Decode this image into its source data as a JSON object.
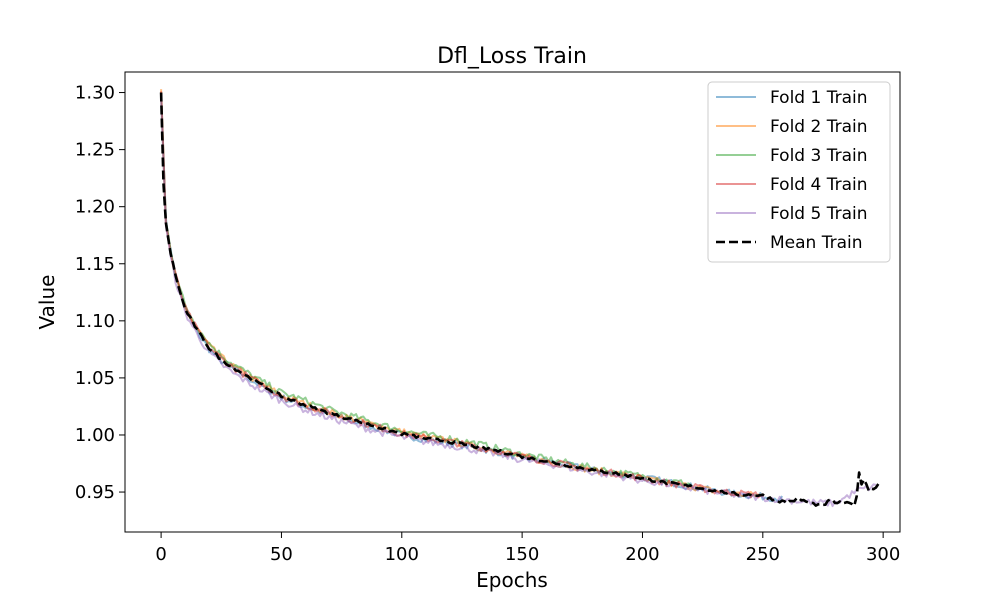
{
  "chart_data": {
    "type": "line",
    "title": "Dfl_Loss Train",
    "xlabel": "Epochs",
    "ylabel": "Value",
    "xlim": [
      -15,
      307
    ],
    "ylim": [
      0.915,
      1.318
    ],
    "xticks": [
      0,
      50,
      100,
      150,
      200,
      250,
      300
    ],
    "yticks": [
      0.95,
      1.0,
      1.05,
      1.1,
      1.15,
      1.2,
      1.25,
      1.3
    ],
    "grid": false,
    "legend_position": "top-right",
    "series": [
      {
        "name": "Fold 1 Train",
        "color": "#1f77b4",
        "style": "solid",
        "alpha": 0.5,
        "x": [
          0,
          2,
          4,
          6,
          8,
          10,
          15,
          20,
          25,
          30,
          40,
          50,
          60,
          70,
          80,
          90,
          100,
          110,
          120,
          130,
          140,
          150,
          160,
          170,
          180,
          190,
          200,
          210,
          220,
          230,
          240,
          250,
          258
        ],
        "y": [
          1.3,
          1.19,
          1.16,
          1.14,
          1.125,
          1.11,
          1.09,
          1.075,
          1.065,
          1.058,
          1.045,
          1.033,
          1.025,
          1.018,
          1.012,
          1.006,
          1.0,
          0.996,
          0.993,
          0.989,
          0.985,
          0.98,
          0.977,
          0.973,
          0.969,
          0.966,
          0.963,
          0.959,
          0.955,
          0.951,
          0.948,
          0.946,
          0.944
        ]
      },
      {
        "name": "Fold 2 Train",
        "color": "#ff7f0e",
        "style": "solid",
        "alpha": 0.5,
        "x": [
          0,
          2,
          4,
          6,
          8,
          10,
          15,
          20,
          25,
          30,
          40,
          50,
          60,
          70,
          80,
          90,
          100,
          110,
          120,
          130,
          140,
          150,
          160,
          170,
          180,
          190,
          200,
          210,
          220,
          230,
          240,
          250
        ],
        "y": [
          1.303,
          1.185,
          1.158,
          1.138,
          1.124,
          1.11,
          1.093,
          1.078,
          1.068,
          1.06,
          1.047,
          1.035,
          1.027,
          1.02,
          1.014,
          1.008,
          1.003,
          0.998,
          0.995,
          0.99,
          0.986,
          0.981,
          0.977,
          0.973,
          0.969,
          0.966,
          0.962,
          0.958,
          0.955,
          0.951,
          0.948,
          0.947
        ]
      },
      {
        "name": "Fold 3 Train",
        "color": "#2ca02c",
        "style": "solid",
        "alpha": 0.5,
        "x": [
          0,
          2,
          4,
          6,
          8,
          10,
          15,
          20,
          25,
          30,
          40,
          50,
          60,
          70,
          80,
          90,
          100,
          110,
          120,
          130,
          140,
          150,
          160,
          170,
          180,
          190,
          200,
          210,
          220
        ],
        "y": [
          1.298,
          1.187,
          1.163,
          1.142,
          1.127,
          1.113,
          1.095,
          1.08,
          1.07,
          1.062,
          1.049,
          1.037,
          1.03,
          1.022,
          1.016,
          1.01,
          1.004,
          1.0,
          0.997,
          0.993,
          0.988,
          0.983,
          0.979,
          0.975,
          0.971,
          0.967,
          0.964,
          0.96,
          0.957
        ]
      },
      {
        "name": "Fold 4 Train",
        "color": "#d62728",
        "style": "solid",
        "alpha": 0.5,
        "x": [
          0,
          2,
          4,
          6,
          8,
          10,
          15,
          20,
          25,
          30,
          40,
          50,
          60,
          70,
          80,
          90,
          100,
          110,
          120,
          130,
          140,
          150,
          160,
          170,
          180,
          190,
          200,
          210,
          220,
          230,
          240,
          250
        ],
        "y": [
          1.301,
          1.186,
          1.159,
          1.14,
          1.125,
          1.111,
          1.092,
          1.077,
          1.067,
          1.059,
          1.046,
          1.034,
          1.026,
          1.019,
          1.013,
          1.007,
          1.001,
          0.997,
          0.994,
          0.99,
          0.986,
          0.981,
          0.977,
          0.973,
          0.969,
          0.966,
          0.962,
          0.958,
          0.955,
          0.951,
          0.949,
          0.947
        ]
      },
      {
        "name": "Fold 5 Train",
        "color": "#9467bd",
        "style": "solid",
        "alpha": 0.5,
        "x": [
          0,
          2,
          4,
          6,
          8,
          10,
          15,
          20,
          25,
          30,
          40,
          50,
          60,
          70,
          80,
          90,
          100,
          110,
          120,
          130,
          140,
          150,
          160,
          170,
          180,
          190,
          200,
          210,
          220,
          230,
          240,
          250,
          260,
          270,
          280,
          290,
          297
        ],
        "y": [
          1.295,
          1.183,
          1.155,
          1.136,
          1.121,
          1.107,
          1.088,
          1.072,
          1.062,
          1.054,
          1.041,
          1.03,
          1.022,
          1.015,
          1.009,
          1.003,
          0.998,
          0.994,
          0.991,
          0.987,
          0.983,
          0.978,
          0.975,
          0.971,
          0.967,
          0.964,
          0.96,
          0.957,
          0.953,
          0.95,
          0.947,
          0.945,
          0.943,
          0.941,
          0.94,
          0.952,
          0.955
        ]
      },
      {
        "name": "Mean Train",
        "color": "#000000",
        "style": "dashed",
        "alpha": 1.0,
        "x": [
          0,
          1,
          2,
          4,
          6,
          8,
          10,
          15,
          20,
          25,
          30,
          40,
          50,
          60,
          70,
          80,
          90,
          100,
          110,
          120,
          130,
          140,
          150,
          160,
          170,
          180,
          190,
          200,
          210,
          220,
          230,
          240,
          250,
          255,
          260,
          265,
          270,
          275,
          278,
          280,
          285,
          288,
          289,
          290,
          291,
          292,
          294,
          296,
          298
        ],
        "y": [
          1.3,
          1.22,
          1.186,
          1.159,
          1.14,
          1.124,
          1.11,
          1.092,
          1.076,
          1.066,
          1.059,
          1.046,
          1.034,
          1.026,
          1.019,
          1.013,
          1.007,
          1.001,
          0.997,
          0.994,
          0.99,
          0.986,
          0.981,
          0.977,
          0.973,
          0.969,
          0.966,
          0.962,
          0.958,
          0.955,
          0.951,
          0.948,
          0.947,
          0.943,
          0.941,
          0.944,
          0.94,
          0.938,
          0.943,
          0.941,
          0.94,
          0.939,
          0.947,
          0.966,
          0.957,
          0.962,
          0.952,
          0.953,
          0.957
        ]
      }
    ]
  }
}
